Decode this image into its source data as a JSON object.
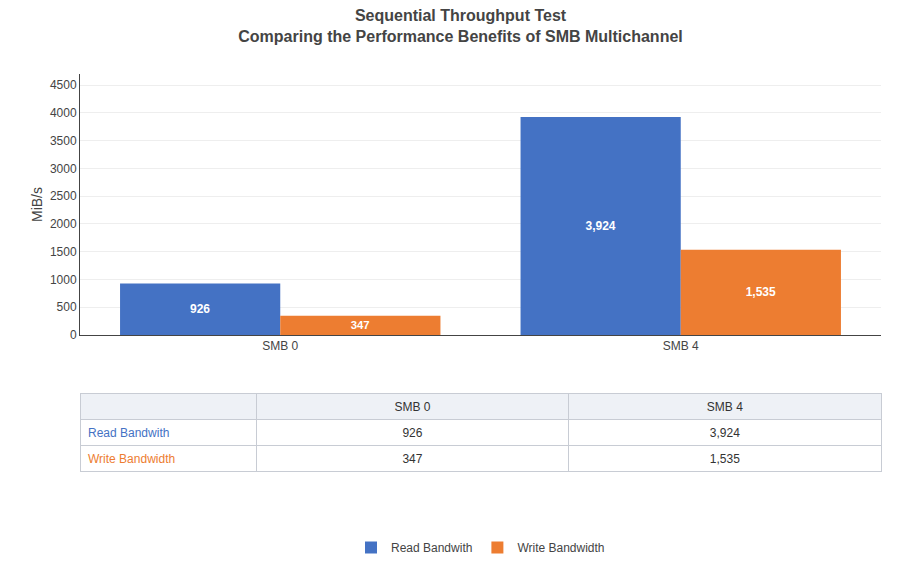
{
  "chart_data": {
    "type": "bar",
    "title": "Sequential Throughput Test",
    "subtitle": "Comparing the Performance Benefits of SMB Multichannel",
    "categories": [
      "SMB 0",
      "SMB 4"
    ],
    "series": [
      {
        "name": "Read Bandwith",
        "color": "#4472C4",
        "values": [
          926,
          3924
        ],
        "value_labels": [
          "926",
          "3,924"
        ]
      },
      {
        "name": "Write Bandwidth",
        "color": "#ED7D31",
        "values": [
          347,
          1535
        ],
        "value_labels": [
          "347",
          "1,535"
        ]
      }
    ],
    "ylabel": "MiB/s",
    "ylim": [
      0,
      4700
    ],
    "yticks": [
      0,
      500,
      1000,
      1500,
      2000,
      2500,
      3000,
      3500,
      4000,
      4500
    ],
    "grid": true,
    "legend": "bottom",
    "data_labels": true
  }
}
